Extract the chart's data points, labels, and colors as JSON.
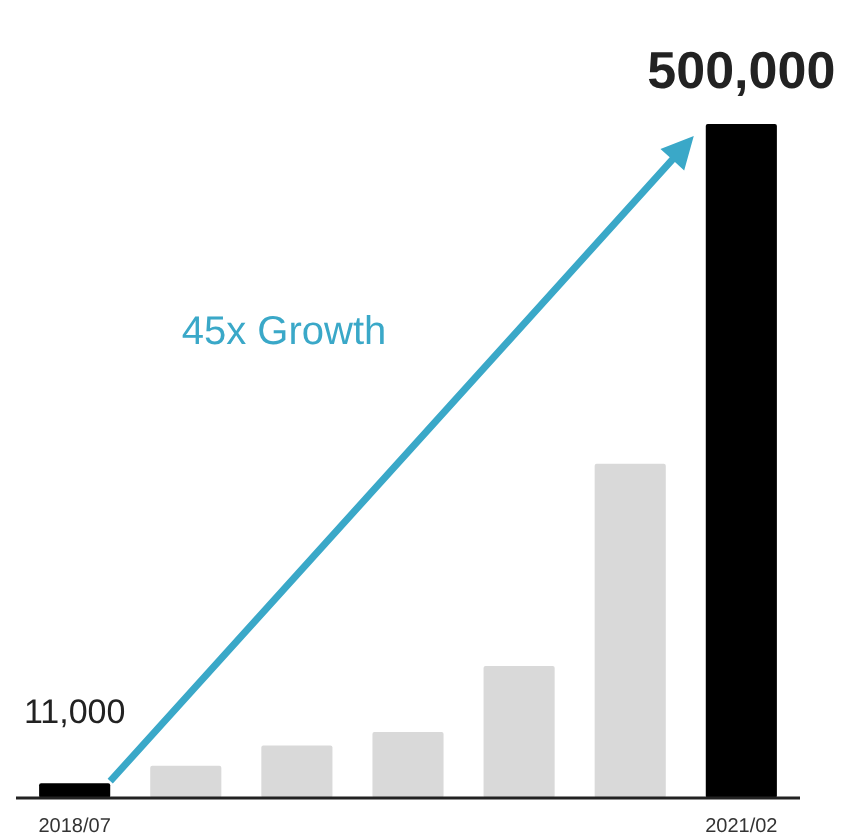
{
  "chart_data": {
    "type": "bar",
    "categories": [
      "2018/07",
      null,
      null,
      null,
      null,
      null,
      "2021/02"
    ],
    "values": [
      11000,
      24000,
      39000,
      49000,
      98000,
      248000,
      500000
    ],
    "colors": [
      "#000000",
      "#d9d9d9",
      "#d9d9d9",
      "#d9d9d9",
      "#d9d9d9",
      "#d9d9d9",
      "#000000"
    ],
    "value_labels": [
      "11,000",
      null,
      null,
      null,
      null,
      null,
      "500,000"
    ],
    "annotations": [
      "45x Growth"
    ]
  }
}
